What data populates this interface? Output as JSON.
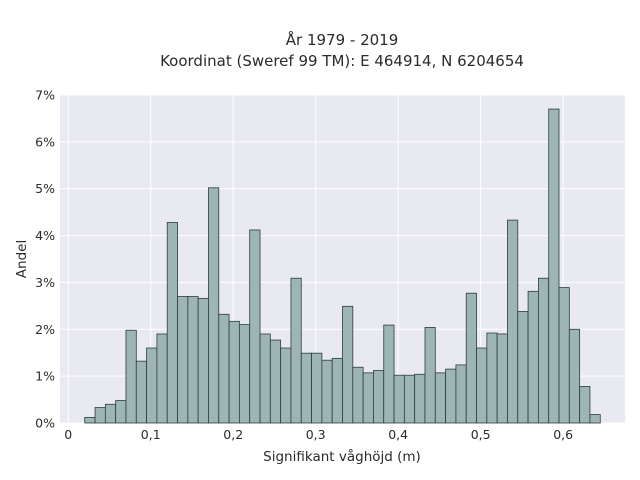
{
  "chart_data": {
    "type": "bar",
    "title": "År 1979 - 2019",
    "subtitle": "Koordinat (Sweref 99 TM): E 464914, N 6204654",
    "xlabel": "Signifikant våghöjd (m)",
    "ylabel": "Andel",
    "xlim": [
      -0.01,
      0.675
    ],
    "ylim": [
      0,
      7
    ],
    "x_ticks": [
      0,
      0.1,
      0.2,
      0.3,
      0.4,
      0.5,
      0.6
    ],
    "x_tick_labels": [
      "0",
      "0,1",
      "0,2",
      "0,3",
      "0,4",
      "0,5",
      "0,6"
    ],
    "y_ticks": [
      0,
      1,
      2,
      3,
      4,
      5,
      6,
      7
    ],
    "y_tick_labels": [
      "0%",
      "1%",
      "2%",
      "3%",
      "4%",
      "5%",
      "6%",
      "7%"
    ],
    "bin_width": 0.0125,
    "bin_starts": [
      0.02,
      0.0325,
      0.045,
      0.0575,
      0.07,
      0.0825,
      0.095,
      0.1075,
      0.12,
      0.1325,
      0.145,
      0.1575,
      0.17,
      0.1825,
      0.195,
      0.2075,
      0.22,
      0.2325,
      0.245,
      0.2575,
      0.27,
      0.2825,
      0.295,
      0.3075,
      0.32,
      0.3325,
      0.345,
      0.3575,
      0.37,
      0.3825,
      0.395,
      0.4075,
      0.42,
      0.4325,
      0.445,
      0.4575,
      0.47,
      0.4825,
      0.495,
      0.5075,
      0.52,
      0.5325,
      0.545,
      0.5575,
      0.57,
      0.5825,
      0.595,
      0.6075,
      0.62,
      0.6325
    ],
    "values": [
      0.12,
      0.33,
      0.4,
      0.48,
      1.98,
      1.32,
      1.6,
      1.9,
      4.28,
      2.7,
      2.7,
      2.66,
      5.02,
      2.32,
      2.17,
      2.1,
      4.12,
      1.9,
      1.77,
      1.6,
      3.09,
      1.49,
      1.49,
      1.34,
      1.38,
      2.49,
      1.19,
      1.07,
      1.12,
      2.09,
      1.02,
      1.02,
      1.04,
      2.04,
      1.07,
      1.15,
      1.24,
      2.77,
      1.6,
      1.92,
      1.9,
      4.33,
      2.38,
      2.81,
      3.09,
      6.7,
      2.89,
      2.0,
      0.78,
      0.18
    ],
    "colors": {
      "bar_fill": "#9db5b5",
      "bar_edge": "#2f3d3d",
      "plot_bg": "#e9e9f1",
      "grid": "#ffffff"
    },
    "grid": true
  }
}
